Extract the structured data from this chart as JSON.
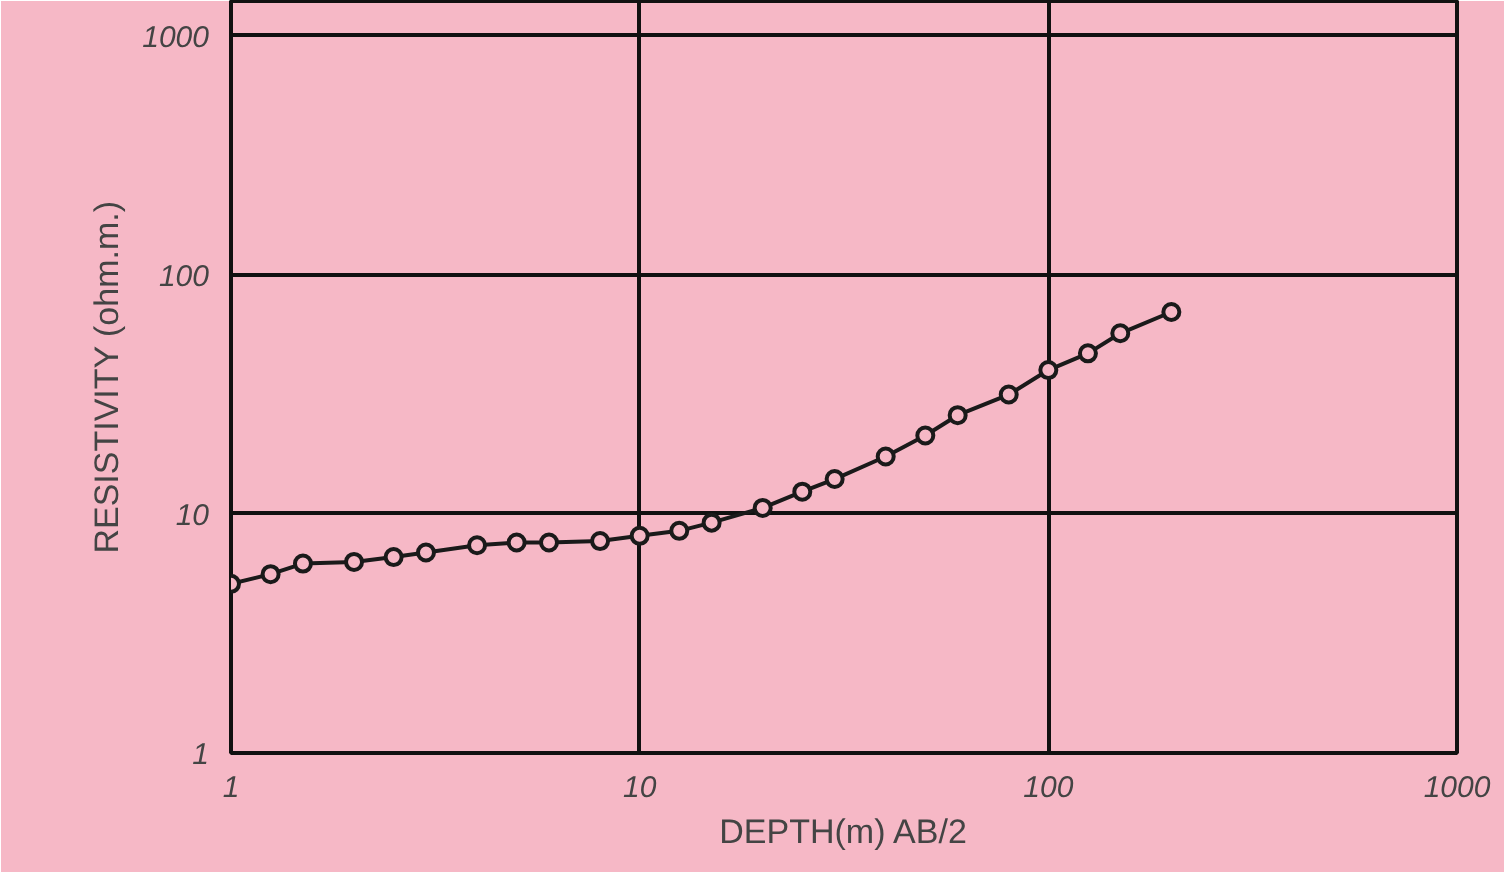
{
  "chart_data": {
    "type": "line",
    "xlabel": "DEPTH(m) AB/2",
    "ylabel": "RESISTIVITY (ohm.m.)",
    "log": "xy",
    "xlim": [
      1,
      1000
    ],
    "ylim": [
      1,
      1400
    ],
    "xticks": [
      1,
      10,
      100,
      1000
    ],
    "yticks": [
      1,
      10,
      100,
      1000
    ],
    "grid": true,
    "marker": "circle",
    "line_style": "solid",
    "series": [
      {
        "color": "#1a1a1a",
        "x": [
          1,
          1.25,
          1.5,
          2,
          2.5,
          3,
          4,
          5,
          6,
          8,
          10,
          12.5,
          15,
          20,
          25,
          30,
          40,
          50,
          60,
          80,
          100,
          125,
          150,
          200
        ],
        "values": [
          5.1,
          5.6,
          6.2,
          6.3,
          6.6,
          6.9,
          7.4,
          7.6,
          7.6,
          7.7,
          8.1,
          8.5,
          9.2,
          10.6,
          12.4,
          14,
          17.4,
          21.3,
          25.9,
          31.6,
          40,
          47,
          57,
          70
        ]
      }
    ]
  }
}
